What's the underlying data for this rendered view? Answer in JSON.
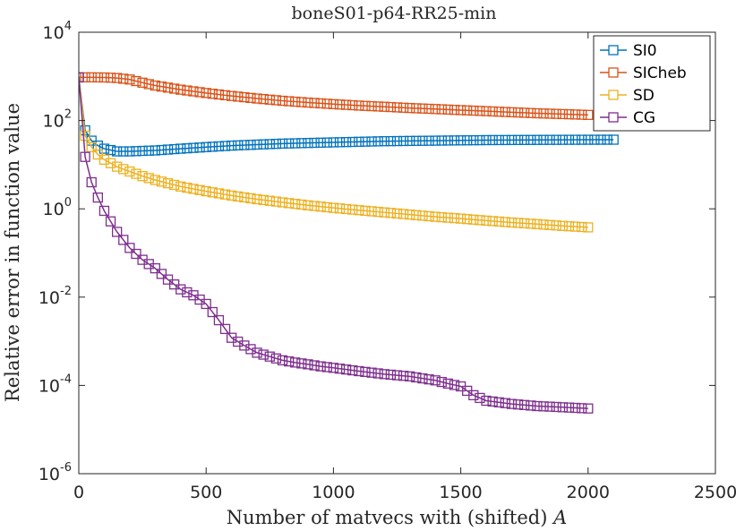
{
  "chart_data": {
    "type": "line",
    "title": "boneS01-p64-RR25-min",
    "xlabel": "Number of matvecs with (shifted) ",
    "xlabel_italic": "A",
    "ylabel": "Relative error in function value",
    "xlim": [
      0,
      2500
    ],
    "ylim_log10": [
      -6,
      4
    ],
    "yscale": "log",
    "x_ticks": [
      "0",
      "500",
      "1000",
      "1500",
      "2000",
      "2500"
    ],
    "y_ticks": [
      {
        "base": "10",
        "exp": "-6"
      },
      {
        "base": "10",
        "exp": "-4"
      },
      {
        "base": "10",
        "exp": "-2"
      },
      {
        "base": "10",
        "exp": "0"
      },
      {
        "base": "10",
        "exp": "2"
      },
      {
        "base": "10",
        "exp": "4"
      }
    ],
    "marker": "square",
    "series": [
      {
        "name": "SI0",
        "color": "#0072BD",
        "x": [
          0,
          25,
          50,
          75,
          100,
          150,
          200,
          250,
          300,
          400,
          500,
          600,
          700,
          800,
          900,
          1000,
          1100,
          1200,
          1300,
          1400,
          1500,
          1600,
          1700,
          1800,
          1900,
          2000,
          2100
        ],
        "y": [
          950,
          60,
          35,
          27,
          23,
          20,
          20,
          20.5,
          21,
          23,
          25,
          27,
          28.5,
          30,
          31,
          32,
          33,
          34,
          34.5,
          35,
          35.5,
          36,
          36.2,
          36.4,
          36.6,
          36.7,
          36.8
        ]
      },
      {
        "name": "SICheb",
        "color": "#D95319",
        "x": [
          0,
          50,
          100,
          150,
          200,
          250,
          300,
          400,
          500,
          600,
          700,
          800,
          900,
          1000,
          1100,
          1200,
          1300,
          1400,
          1500,
          1600,
          1700,
          1800,
          1900,
          2000
        ],
        "y": [
          950,
          950,
          945,
          920,
          850,
          720,
          620,
          500,
          420,
          360,
          315,
          280,
          255,
          235,
          218,
          205,
          192,
          182,
          172,
          163,
          154,
          146,
          140,
          134
        ]
      },
      {
        "name": "SD",
        "color": "#EDB120",
        "x": [
          0,
          25,
          50,
          75,
          100,
          150,
          200,
          250,
          300,
          400,
          500,
          600,
          700,
          800,
          900,
          1000,
          1100,
          1200,
          1300,
          1400,
          1500,
          1600,
          1700,
          1800,
          1900,
          2000
        ],
        "y": [
          950,
          45,
          25,
          17,
          13,
          9,
          7,
          5.5,
          4.5,
          3.2,
          2.5,
          2.0,
          1.65,
          1.4,
          1.2,
          1.05,
          0.93,
          0.83,
          0.74,
          0.66,
          0.6,
          0.54,
          0.49,
          0.45,
          0.41,
          0.38
        ]
      },
      {
        "name": "CG",
        "color": "#7E2F8E",
        "x": [
          0,
          25,
          50,
          75,
          100,
          150,
          200,
          250,
          300,
          350,
          400,
          450,
          500,
          550,
          600,
          650,
          700,
          750,
          800,
          850,
          900,
          950,
          1000,
          1100,
          1200,
          1300,
          1400,
          1450,
          1500,
          1550,
          1600,
          1700,
          1800,
          1900,
          2000
        ],
        "y": [
          950,
          15,
          4,
          1.8,
          0.9,
          0.3,
          0.13,
          0.07,
          0.045,
          0.025,
          0.015,
          0.011,
          0.007,
          0.003,
          0.0012,
          0.0008,
          0.00055,
          0.00045,
          0.00037,
          0.00033,
          0.0003,
          0.00027,
          0.00025,
          0.00021,
          0.00018,
          0.00016,
          0.00013,
          0.00011,
          9.5e-05,
          6e-05,
          4.5e-05,
          3.8e-05,
          3.4e-05,
          3.2e-05,
          3e-05
        ]
      }
    ],
    "legend_position": "top-right"
  }
}
